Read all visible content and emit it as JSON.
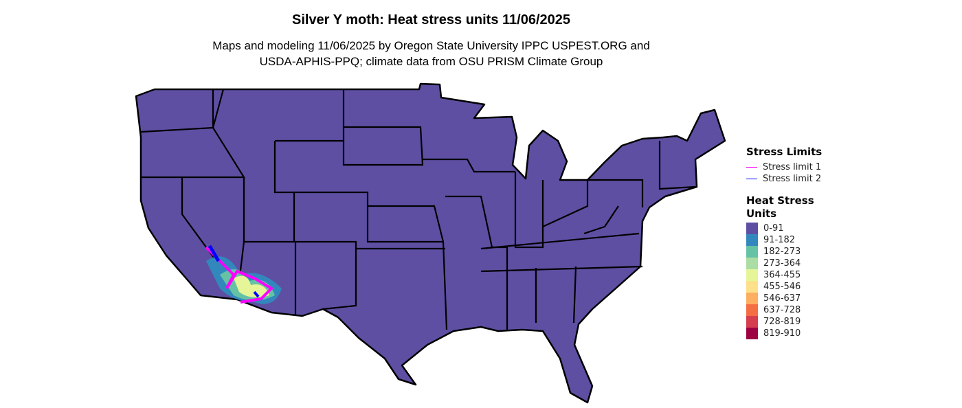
{
  "title": "Silver Y moth: Heat stress units 11/06/2025",
  "subtitle_line1": "Maps and modeling 11/06/2025 by Oregon State University IPPC USPEST.ORG and",
  "subtitle_line2": "USDA-APHIS-PPQ; climate data from OSU PRISM Climate Group",
  "map": {
    "base_color": "#5E4FA2",
    "border_color": "#000000"
  },
  "legend": {
    "stress_title": "Stress Limits",
    "stress_items": [
      {
        "label": "Stress limit 1",
        "color": "#FF00FF"
      },
      {
        "label": "Stress limit 2",
        "color": "#0000FF"
      }
    ],
    "heat_title_1": "Heat Stress",
    "heat_title_2": "Units",
    "heat_items": [
      {
        "label": "0-91",
        "color": "#5E4FA2"
      },
      {
        "label": "91-182",
        "color": "#3288BD"
      },
      {
        "label": "182-273",
        "color": "#66C2A5"
      },
      {
        "label": "273-364",
        "color": "#ABDDA4"
      },
      {
        "label": "364-455",
        "color": "#E6F598"
      },
      {
        "label": "455-546",
        "color": "#FEE08B"
      },
      {
        "label": "546-637",
        "color": "#FDAE61"
      },
      {
        "label": "637-728",
        "color": "#F46D43"
      },
      {
        "label": "728-819",
        "color": "#D53E4F"
      },
      {
        "label": "819-910",
        "color": "#9E0142"
      }
    ]
  }
}
